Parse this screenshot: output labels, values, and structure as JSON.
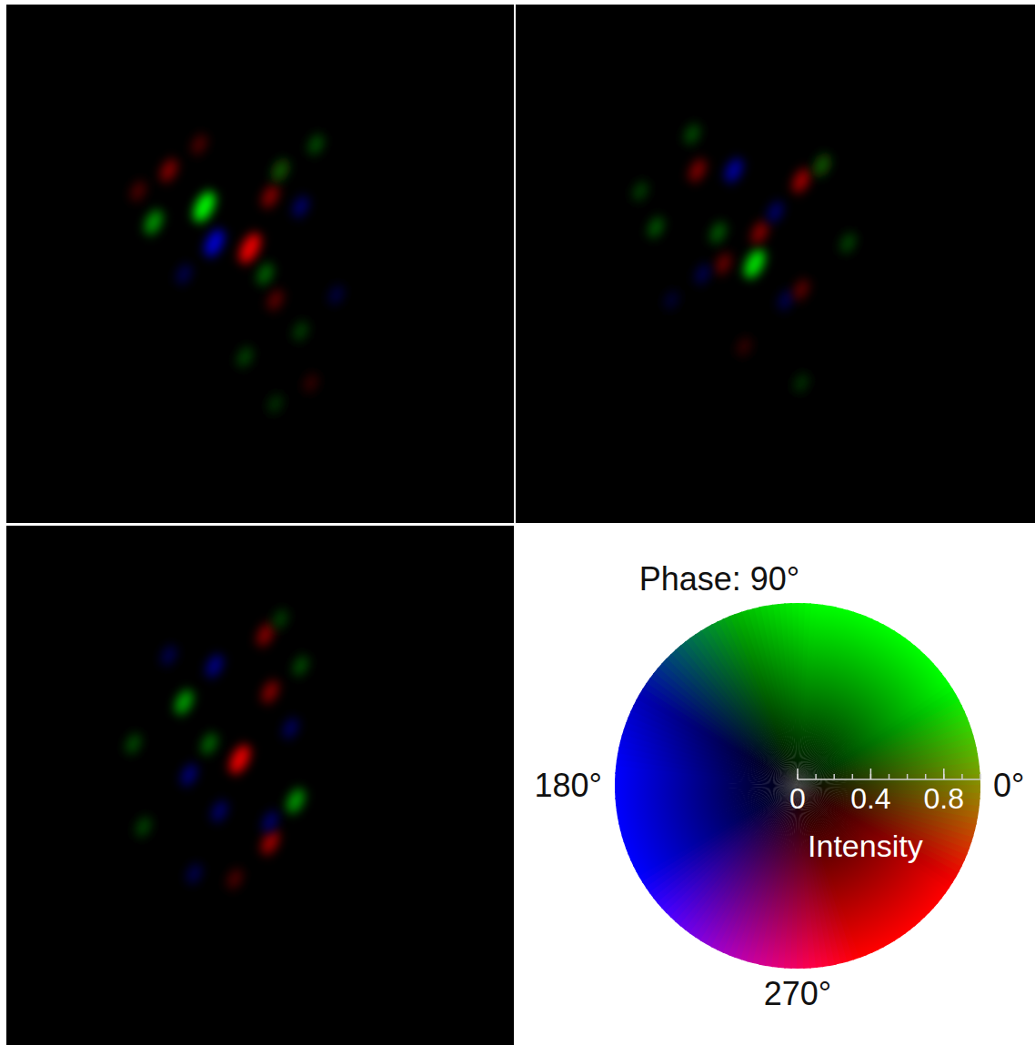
{
  "chart_data": [
    {
      "type": "image",
      "xlim": [
        0,
        1
      ],
      "ylim": [
        1,
        0
      ],
      "tick_labels": false,
      "spots": [
        {
          "x": 0.39,
          "y": 0.39,
          "phase": 80,
          "intensity": 1.0
        },
        {
          "x": 0.29,
          "y": 0.42,
          "phase": 90,
          "intensity": 0.6
        },
        {
          "x": 0.41,
          "y": 0.46,
          "phase": 180,
          "intensity": 0.8
        },
        {
          "x": 0.48,
          "y": 0.47,
          "phase": 330,
          "intensity": 1.0
        },
        {
          "x": 0.32,
          "y": 0.32,
          "phase": 300,
          "intensity": 0.5
        },
        {
          "x": 0.52,
          "y": 0.37,
          "phase": 300,
          "intensity": 0.5
        },
        {
          "x": 0.54,
          "y": 0.32,
          "phase": 20,
          "intensity": 0.4
        },
        {
          "x": 0.58,
          "y": 0.39,
          "phase": 190,
          "intensity": 0.4
        },
        {
          "x": 0.61,
          "y": 0.27,
          "phase": 80,
          "intensity": 0.3
        },
        {
          "x": 0.51,
          "y": 0.52,
          "phase": 90,
          "intensity": 0.4
        },
        {
          "x": 0.53,
          "y": 0.57,
          "phase": 300,
          "intensity": 0.35
        },
        {
          "x": 0.47,
          "y": 0.68,
          "phase": 100,
          "intensity": 0.3
        },
        {
          "x": 0.26,
          "y": 0.36,
          "phase": 300,
          "intensity": 0.3
        },
        {
          "x": 0.35,
          "y": 0.52,
          "phase": 200,
          "intensity": 0.3
        },
        {
          "x": 0.58,
          "y": 0.63,
          "phase": 90,
          "intensity": 0.25
        },
        {
          "x": 0.65,
          "y": 0.56,
          "phase": 180,
          "intensity": 0.25
        },
        {
          "x": 0.38,
          "y": 0.27,
          "phase": 310,
          "intensity": 0.3
        },
        {
          "x": 0.53,
          "y": 0.77,
          "phase": 90,
          "intensity": 0.2
        },
        {
          "x": 0.6,
          "y": 0.73,
          "phase": 300,
          "intensity": 0.2
        }
      ]
    },
    {
      "type": "image",
      "xlim": [
        0,
        1
      ],
      "ylim": [
        1,
        0
      ],
      "tick_labels": false,
      "spots": [
        {
          "x": 0.42,
          "y": 0.32,
          "phase": 180,
          "intensity": 0.6
        },
        {
          "x": 0.46,
          "y": 0.5,
          "phase": 90,
          "intensity": 0.9
        },
        {
          "x": 0.35,
          "y": 0.32,
          "phase": 330,
          "intensity": 0.5
        },
        {
          "x": 0.55,
          "y": 0.34,
          "phase": 300,
          "intensity": 0.6
        },
        {
          "x": 0.47,
          "y": 0.44,
          "phase": 300,
          "intensity": 0.5
        },
        {
          "x": 0.39,
          "y": 0.44,
          "phase": 100,
          "intensity": 0.4
        },
        {
          "x": 0.59,
          "y": 0.31,
          "phase": 20,
          "intensity": 0.4
        },
        {
          "x": 0.5,
          "y": 0.4,
          "phase": 200,
          "intensity": 0.4
        },
        {
          "x": 0.4,
          "y": 0.5,
          "phase": 300,
          "intensity": 0.4
        },
        {
          "x": 0.36,
          "y": 0.52,
          "phase": 180,
          "intensity": 0.3
        },
        {
          "x": 0.27,
          "y": 0.43,
          "phase": 90,
          "intensity": 0.35
        },
        {
          "x": 0.24,
          "y": 0.36,
          "phase": 90,
          "intensity": 0.25
        },
        {
          "x": 0.52,
          "y": 0.57,
          "phase": 200,
          "intensity": 0.3
        },
        {
          "x": 0.55,
          "y": 0.55,
          "phase": 300,
          "intensity": 0.35
        },
        {
          "x": 0.64,
          "y": 0.46,
          "phase": 100,
          "intensity": 0.3
        },
        {
          "x": 0.34,
          "y": 0.25,
          "phase": 90,
          "intensity": 0.3
        },
        {
          "x": 0.44,
          "y": 0.66,
          "phase": 300,
          "intensity": 0.2
        },
        {
          "x": 0.55,
          "y": 0.73,
          "phase": 90,
          "intensity": 0.2
        },
        {
          "x": 0.3,
          "y": 0.57,
          "phase": 180,
          "intensity": 0.2
        }
      ]
    },
    {
      "type": "image",
      "xlim": [
        0,
        1
      ],
      "ylim": [
        1,
        0
      ],
      "tick_labels": false,
      "spots": [
        {
          "x": 0.46,
          "y": 0.45,
          "phase": 320,
          "intensity": 0.9
        },
        {
          "x": 0.35,
          "y": 0.34,
          "phase": 60,
          "intensity": 0.6
        },
        {
          "x": 0.41,
          "y": 0.27,
          "phase": 180,
          "intensity": 0.5
        },
        {
          "x": 0.51,
          "y": 0.21,
          "phase": 300,
          "intensity": 0.5
        },
        {
          "x": 0.52,
          "y": 0.32,
          "phase": 300,
          "intensity": 0.5
        },
        {
          "x": 0.56,
          "y": 0.39,
          "phase": 200,
          "intensity": 0.35
        },
        {
          "x": 0.57,
          "y": 0.53,
          "phase": 90,
          "intensity": 0.6
        },
        {
          "x": 0.52,
          "y": 0.61,
          "phase": 320,
          "intensity": 0.6
        },
        {
          "x": 0.52,
          "y": 0.57,
          "phase": 180,
          "intensity": 0.4
        },
        {
          "x": 0.36,
          "y": 0.48,
          "phase": 190,
          "intensity": 0.45
        },
        {
          "x": 0.4,
          "y": 0.42,
          "phase": 90,
          "intensity": 0.4
        },
        {
          "x": 0.42,
          "y": 0.55,
          "phase": 180,
          "intensity": 0.4
        },
        {
          "x": 0.25,
          "y": 0.42,
          "phase": 90,
          "intensity": 0.3
        },
        {
          "x": 0.32,
          "y": 0.25,
          "phase": 200,
          "intensity": 0.3
        },
        {
          "x": 0.27,
          "y": 0.58,
          "phase": 100,
          "intensity": 0.3
        },
        {
          "x": 0.45,
          "y": 0.68,
          "phase": 300,
          "intensity": 0.3
        },
        {
          "x": 0.37,
          "y": 0.67,
          "phase": 200,
          "intensity": 0.3
        },
        {
          "x": 0.58,
          "y": 0.27,
          "phase": 90,
          "intensity": 0.3
        },
        {
          "x": 0.54,
          "y": 0.18,
          "phase": 90,
          "intensity": 0.25
        }
      ]
    },
    {
      "type": "color_wheel",
      "phase_ticks": [
        {
          "value": 90,
          "label": "Phase: 90°"
        },
        {
          "value": 180,
          "label": "180°"
        },
        {
          "value": 0,
          "label": "0°"
        },
        {
          "value": 270,
          "label": "270°"
        }
      ],
      "xlabel": "Intensity",
      "xlim": [
        0,
        1
      ],
      "xticks": [
        0,
        0.4,
        0.8
      ]
    }
  ]
}
